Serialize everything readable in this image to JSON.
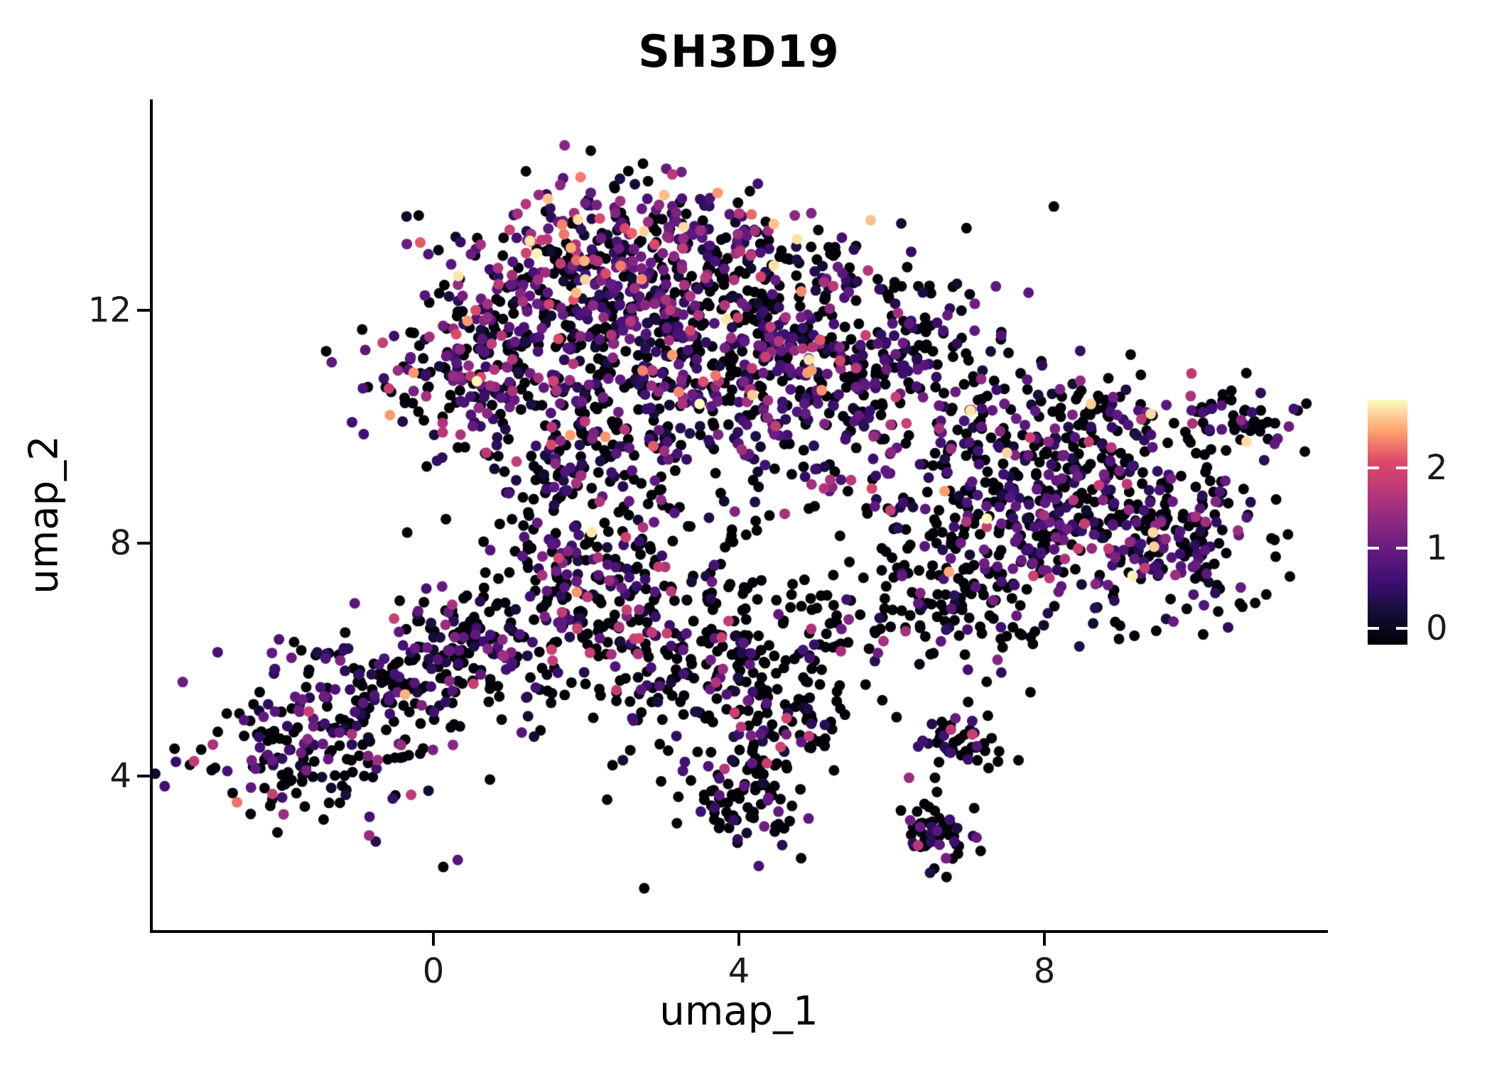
{
  "chart_data": {
    "type": "scatter",
    "title": "SH3D19",
    "xlabel": "umap_1",
    "ylabel": "umap_2",
    "x_ticks": [
      0,
      4,
      8
    ],
    "y_ticks": [
      12,
      8,
      4
    ],
    "x_range": [
      -3.674,
      11.674
    ],
    "y_range": [
      1.354,
      15.622
    ],
    "grid": false,
    "legend_position": "right",
    "point_radius": 7.5,
    "seed": 42,
    "colormap": {
      "name": "magma",
      "domain": [
        0,
        2.9
      ],
      "stops": [
        {
          "t": 0.0,
          "color": "#000004"
        },
        {
          "t": 0.13,
          "color": "#140e36"
        },
        {
          "t": 0.25,
          "color": "#3b0f70"
        },
        {
          "t": 0.38,
          "color": "#641a80"
        },
        {
          "t": 0.5,
          "color": "#8c2981"
        },
        {
          "t": 0.62,
          "color": "#b73779"
        },
        {
          "t": 0.75,
          "color": "#de4968"
        },
        {
          "t": 0.87,
          "color": "#fe9f6d"
        },
        {
          "t": 1.0,
          "color": "#fcfdbf"
        }
      ]
    },
    "colorbar": {
      "ticks": [
        2,
        1,
        0
      ],
      "range": [
        -0.2,
        2.85
      ]
    },
    "expression_profiles": {
      "blackHeavy": {
        "bins": [
          {
            "p": 0.78,
            "range": [
              0,
              0.05
            ]
          },
          {
            "p": 0.18,
            "range": [
              0.3,
              1.2
            ]
          },
          {
            "p": 0.035,
            "range": [
              1.2,
              2.0
            ]
          },
          {
            "p": 0.005,
            "range": [
              2.0,
              2.9
            ]
          }
        ]
      },
      "blackPurple": {
        "bins": [
          {
            "p": 0.6,
            "range": [
              0,
              0.05
            ]
          },
          {
            "p": 0.32,
            "range": [
              0.3,
              1.2
            ]
          },
          {
            "p": 0.07,
            "range": [
              1.2,
              2.0
            ]
          },
          {
            "p": 0.01,
            "range": [
              2.0,
              2.9
            ]
          }
        ]
      },
      "purpleHeavy": {
        "bins": [
          {
            "p": 0.35,
            "range": [
              0,
              0.05
            ]
          },
          {
            "p": 0.5,
            "range": [
              0.3,
              1.2
            ]
          },
          {
            "p": 0.13,
            "range": [
              1.2,
              2.0
            ]
          },
          {
            "p": 0.02,
            "range": [
              2.0,
              2.9
            ]
          }
        ]
      },
      "mixed": {
        "bins": [
          {
            "p": 0.5,
            "range": [
              0,
              0.05
            ]
          },
          {
            "p": 0.35,
            "range": [
              0.3,
              1.2
            ]
          },
          {
            "p": 0.12,
            "range": [
              1.2,
              2.0
            ]
          },
          {
            "p": 0.03,
            "range": [
              2.0,
              2.9
            ]
          }
        ]
      },
      "mixedHigh": {
        "bins": [
          {
            "p": 0.4,
            "range": [
              0,
              0.05
            ]
          },
          {
            "p": 0.35,
            "range": [
              0.3,
              1.2
            ]
          },
          {
            "p": 0.17,
            "range": [
              1.2,
              2.0
            ]
          },
          {
            "p": 0.08,
            "range": [
              2.0,
              2.9
            ]
          }
        ]
      }
    },
    "clusters": [
      {
        "cx": 2.6,
        "cy": 13.3,
        "sx": 0.9,
        "sy": 0.55,
        "n": 200,
        "profile": "mixedHigh"
      },
      {
        "cx": 1.5,
        "cy": 12.2,
        "sx": 1.0,
        "sy": 0.7,
        "n": 180,
        "profile": "mixedHigh"
      },
      {
        "cx": 3.6,
        "cy": 12.4,
        "sx": 1.1,
        "sy": 0.7,
        "n": 200,
        "profile": "mixed"
      },
      {
        "cx": 5.0,
        "cy": 11.8,
        "sx": 0.9,
        "sy": 0.8,
        "n": 140,
        "profile": "mixed"
      },
      {
        "cx": 0.3,
        "cy": 10.8,
        "sx": 0.7,
        "sy": 0.6,
        "n": 140,
        "profile": "purpleHeavy"
      },
      {
        "cx": 1.5,
        "cy": 10.9,
        "sx": 0.8,
        "sy": 0.7,
        "n": 110,
        "profile": "mixed"
      },
      {
        "cx": 4.3,
        "cy": 10.5,
        "sx": 0.8,
        "sy": 0.7,
        "n": 180,
        "profile": "purpleHeavy"
      },
      {
        "cx": 3.0,
        "cy": 11.3,
        "sx": 0.9,
        "sy": 0.6,
        "n": 130,
        "profile": "mixed"
      },
      {
        "cx": 5.8,
        "cy": 10.2,
        "sx": 0.7,
        "sy": 0.8,
        "n": 100,
        "profile": "blackPurple"
      },
      {
        "cx": 2.2,
        "cy": 9.6,
        "sx": 0.8,
        "sy": 0.5,
        "n": 80,
        "profile": "mixed"
      },
      {
        "cx": 6.3,
        "cy": 11.4,
        "sx": 0.6,
        "sy": 0.7,
        "n": 80,
        "profile": "blackPurple"
      },
      {
        "cx": 7.6,
        "cy": 8.6,
        "sx": 0.9,
        "sy": 0.9,
        "n": 240,
        "profile": "blackPurple"
      },
      {
        "cx": 9.0,
        "cy": 8.3,
        "sx": 0.9,
        "sy": 0.8,
        "n": 210,
        "profile": "blackPurple"
      },
      {
        "cx": 8.3,
        "cy": 9.9,
        "sx": 0.9,
        "sy": 0.6,
        "n": 140,
        "profile": "blackPurple"
      },
      {
        "cx": 6.9,
        "cy": 7.0,
        "sx": 0.7,
        "sy": 0.6,
        "n": 110,
        "profile": "blackHeavy"
      },
      {
        "cx": 10.0,
        "cy": 7.8,
        "sx": 0.5,
        "sy": 0.6,
        "n": 70,
        "profile": "blackPurple"
      },
      {
        "cx": 10.55,
        "cy": 10.1,
        "sx": 0.45,
        "sy": 0.3,
        "n": 55,
        "profile": "blackPurple"
      },
      {
        "cx": -1.6,
        "cy": 4.6,
        "sx": 0.8,
        "sy": 0.7,
        "n": 200,
        "profile": "blackPurple"
      },
      {
        "cx": -0.3,
        "cy": 5.8,
        "sx": 0.7,
        "sy": 0.5,
        "n": 120,
        "profile": "blackPurple"
      },
      {
        "cx": 0.2,
        "cy": 6.4,
        "sx": 0.4,
        "sy": 0.3,
        "n": 45,
        "profile": "blackPurple"
      },
      {
        "cx": 1.9,
        "cy": 8.4,
        "sx": 0.6,
        "sy": 0.8,
        "n": 130,
        "profile": "mixed"
      },
      {
        "cx": 2.6,
        "cy": 7.0,
        "sx": 0.7,
        "sy": 0.8,
        "n": 140,
        "profile": "blackPurple"
      },
      {
        "cx": 3.3,
        "cy": 5.7,
        "sx": 0.8,
        "sy": 0.7,
        "n": 110,
        "profile": "blackHeavy"
      },
      {
        "cx": 4.6,
        "cy": 6.3,
        "sx": 0.9,
        "sy": 0.8,
        "n": 100,
        "profile": "blackHeavy"
      },
      {
        "cx": 1.2,
        "cy": 6.2,
        "sx": 0.5,
        "sy": 0.7,
        "n": 70,
        "profile": "blackPurple"
      },
      {
        "cx": 4.1,
        "cy": 3.6,
        "sx": 0.45,
        "sy": 0.4,
        "n": 80,
        "profile": "blackHeavy"
      },
      {
        "cx": 6.6,
        "cy": 3.0,
        "sx": 0.25,
        "sy": 0.3,
        "n": 55,
        "profile": "blackHeavy"
      },
      {
        "cx": 6.95,
        "cy": 4.55,
        "sx": 0.3,
        "sy": 0.22,
        "n": 45,
        "profile": "blackPurple"
      },
      {
        "cx": 4.5,
        "cy": 4.7,
        "sx": 0.4,
        "sy": 0.35,
        "n": 55,
        "profile": "blackHeavy"
      },
      {
        "cx": 3.8,
        "cy": 7.2,
        "sx": 2.0,
        "sy": 1.5,
        "n": 70,
        "profile": "blackHeavy"
      }
    ]
  }
}
